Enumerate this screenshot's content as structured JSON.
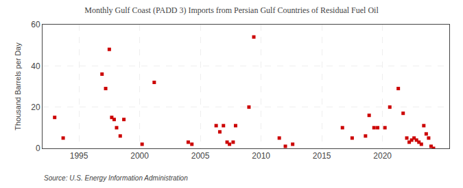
{
  "chart_data": {
    "type": "scatter",
    "title": "Monthly Gulf Coast (PADD 3) Imports from Persian Gulf Countries of Residual Fuel Oil",
    "ylabel": "Thousand Barrels per Day",
    "annotations": [
      "Source: U.S. Energy Information Administration"
    ],
    "x": [
      1993.0,
      1993.7,
      1996.9,
      1997.2,
      1997.5,
      1997.7,
      1997.9,
      1998.1,
      1998.4,
      1998.7,
      2000.2,
      2001.2,
      2004.0,
      2004.3,
      2006.3,
      2006.6,
      2006.9,
      2007.2,
      2007.4,
      2007.7,
      2007.9,
      2009.0,
      2009.4,
      2011.5,
      2012.0,
      2012.6,
      2016.7,
      2017.5,
      2018.6,
      2018.9,
      2019.3,
      2019.6,
      2020.2,
      2020.6,
      2021.3,
      2021.7,
      2022.0,
      2022.2,
      2022.4,
      2022.6,
      2022.8,
      2023.0,
      2023.2,
      2023.4,
      2023.6,
      2023.8,
      2024.0,
      2024.2
    ],
    "values": [
      15,
      5,
      36,
      29,
      48,
      15,
      14,
      10,
      6,
      14,
      2,
      32,
      3,
      2,
      11,
      8,
      11,
      3,
      2,
      3,
      11,
      20,
      54,
      5,
      1,
      2,
      10,
      5,
      6,
      16,
      10,
      10,
      10,
      20,
      29,
      17,
      5,
      3,
      4,
      5,
      4,
      3,
      2,
      11,
      7,
      5,
      1,
      0
    ],
    "color": "#cc0000",
    "marker": "square",
    "xlim": [
      1992.0,
      2025.5
    ],
    "ylim": [
      0,
      60
    ],
    "xticks": [
      1995,
      2000,
      2005,
      2010,
      2015,
      2020
    ],
    "yticks": [
      0,
      20,
      40,
      60
    ],
    "grid": true
  }
}
